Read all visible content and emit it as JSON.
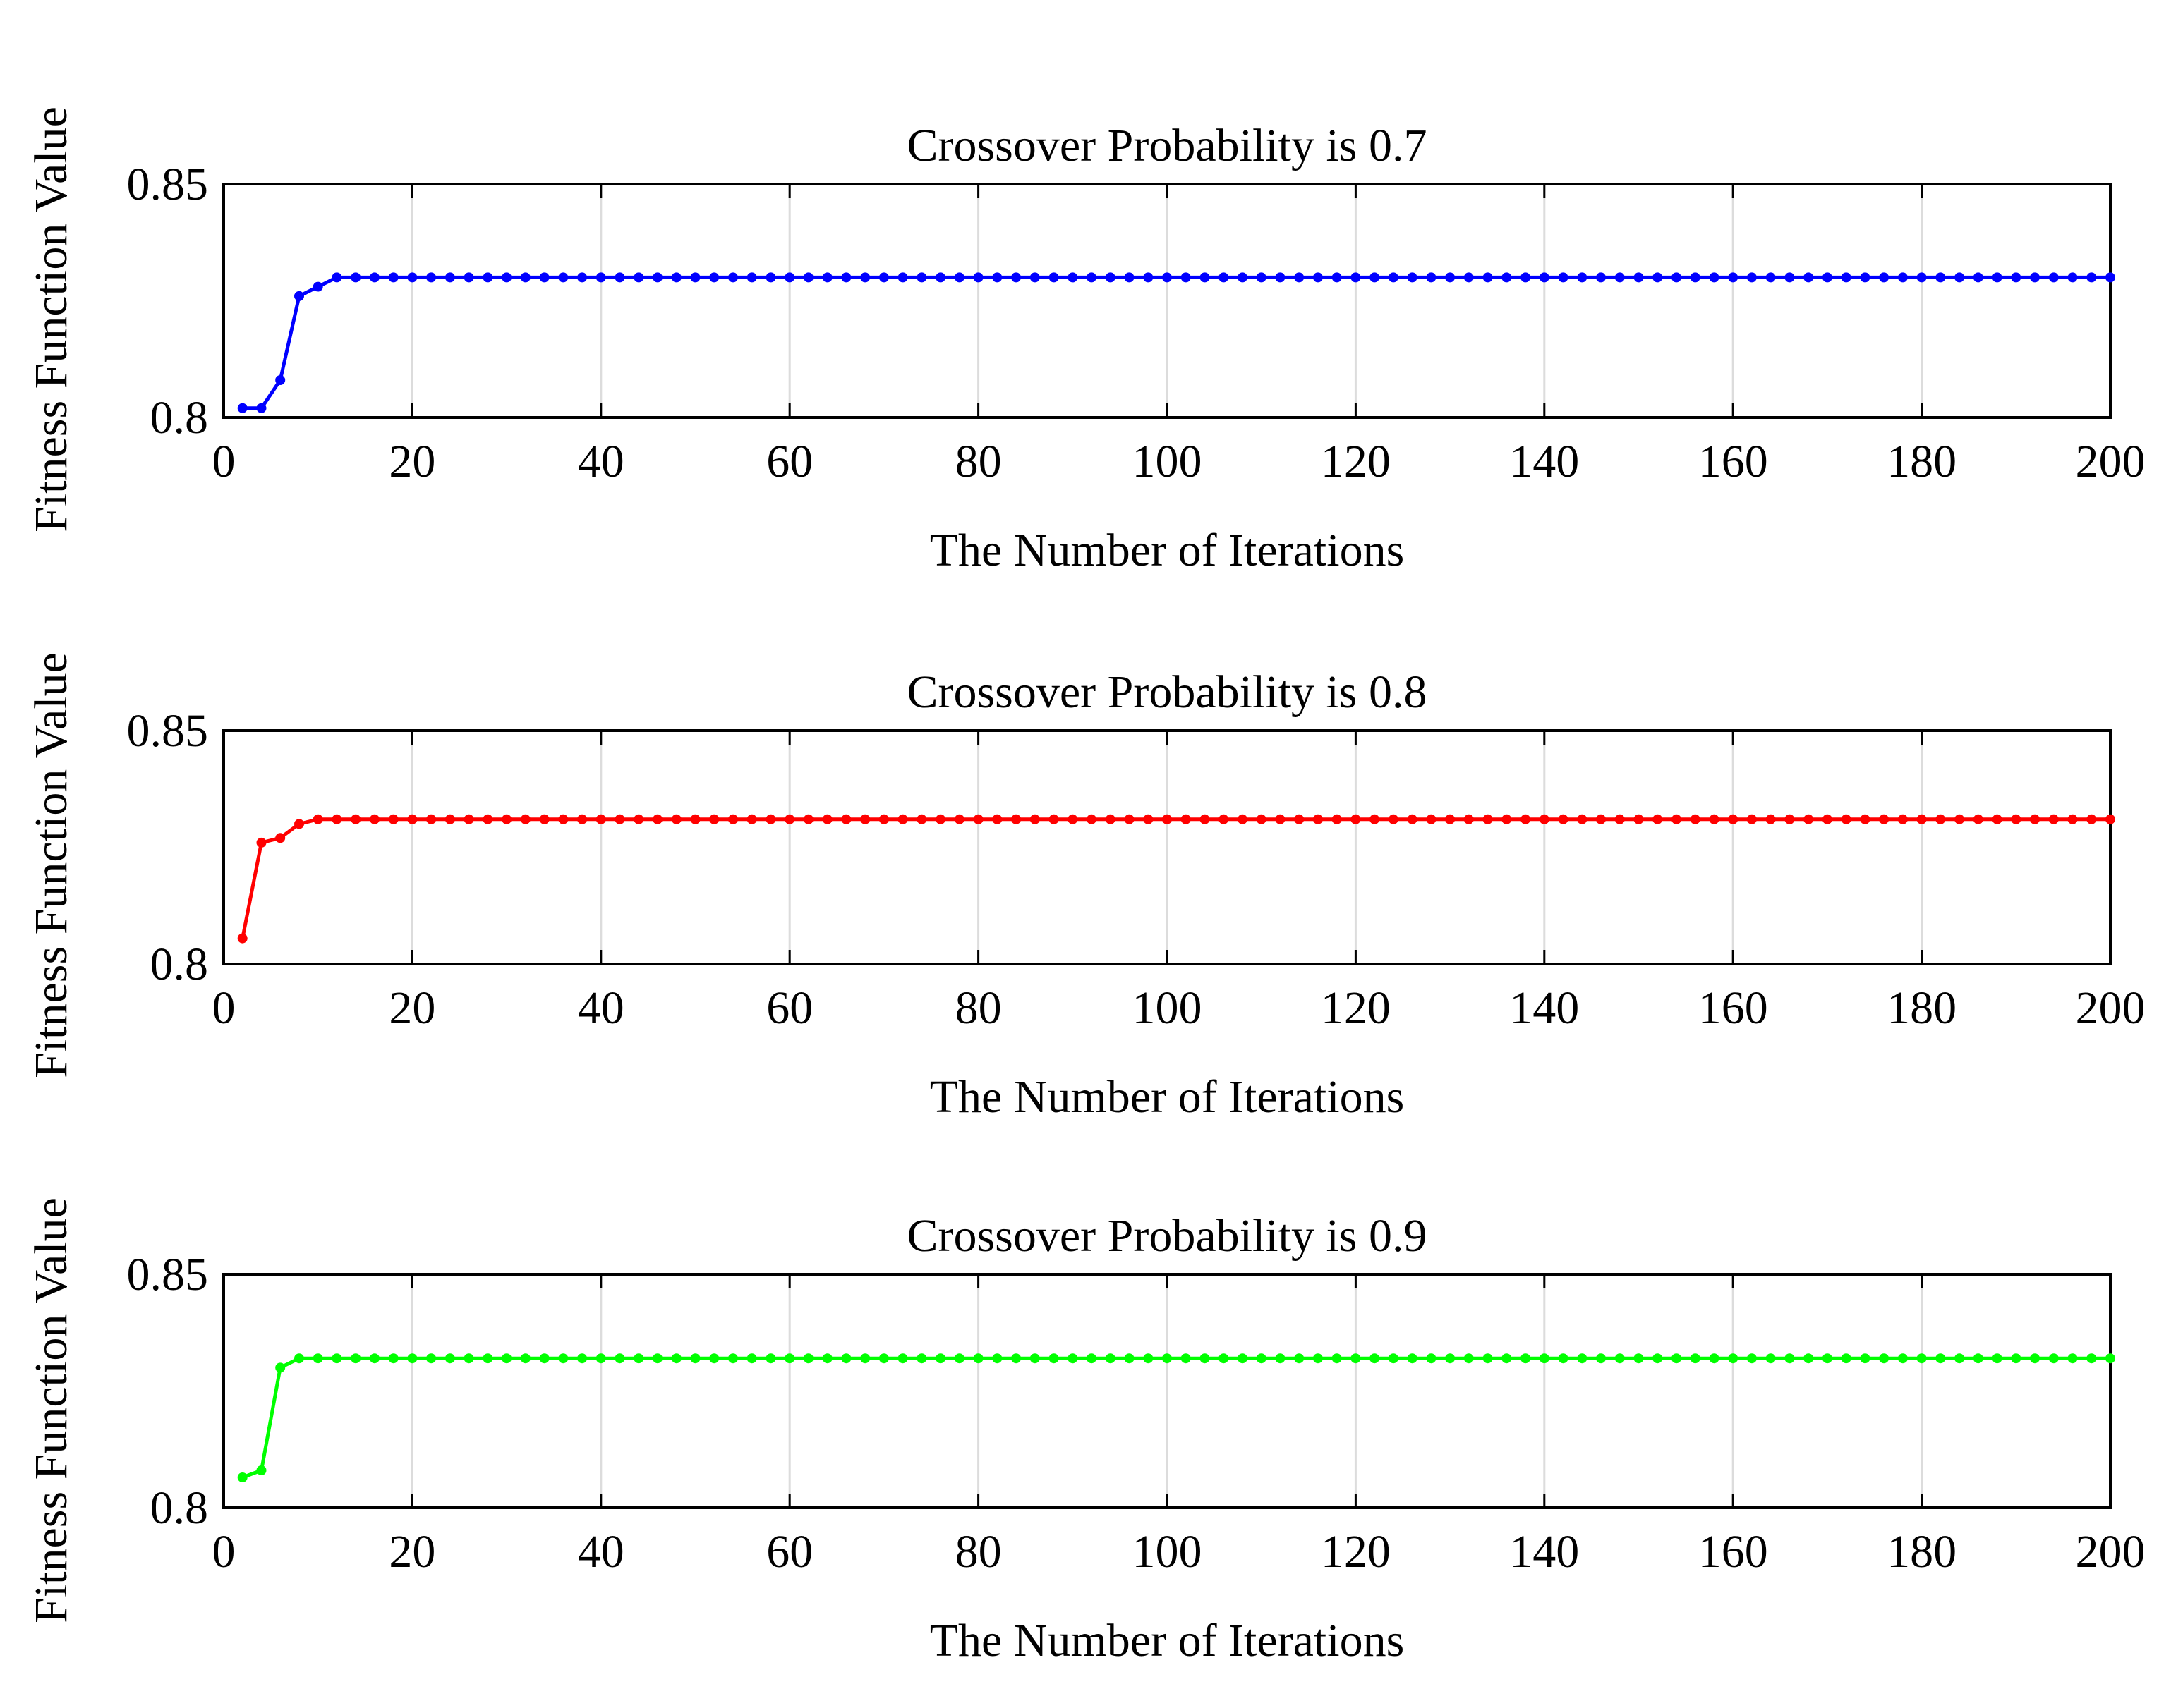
{
  "chart_data": [
    {
      "type": "line",
      "title": "Crossover Probability is 0.7",
      "xlabel": "The Number of Iterations",
      "ylabel": "Fitness Function Value",
      "xlim": [
        0,
        200
      ],
      "ylim": [
        0.8,
        0.85
      ],
      "xticks": [
        "0",
        "20",
        "40",
        "60",
        "80",
        "100",
        "120",
        "140",
        "160",
        "180",
        "200"
      ],
      "yticks": [
        "0.8",
        "0.85"
      ],
      "grid": "vertical",
      "color": "#0000ff",
      "series": [
        {
          "name": "Crossover Probability is 0.7",
          "points": [
            [
              2,
              0.802
            ],
            [
              4,
              0.802
            ],
            [
              6,
              0.808
            ],
            [
              8,
              0.826
            ],
            [
              10,
              0.828
            ],
            [
              12,
              0.83
            ]
          ],
          "plateau": {
            "from": 12,
            "to": 200,
            "step": 2,
            "value": 0.83
          }
        }
      ]
    },
    {
      "type": "line",
      "title": "Crossover Probability is 0.8",
      "xlabel": "The Number of Iterations",
      "ylabel": "Fitness Function Value",
      "xlim": [
        0,
        200
      ],
      "ylim": [
        0.8,
        0.85
      ],
      "xticks": [
        "0",
        "20",
        "40",
        "60",
        "80",
        "100",
        "120",
        "140",
        "160",
        "180",
        "200"
      ],
      "yticks": [
        "0.8",
        "0.85"
      ],
      "grid": "vertical",
      "color": "#ff0000",
      "series": [
        {
          "name": "Crossover Probability is 0.8",
          "points": [
            [
              2,
              0.8055
            ],
            [
              4,
              0.826
            ],
            [
              6,
              0.827
            ],
            [
              8,
              0.83
            ],
            [
              10,
              0.831
            ]
          ],
          "plateau": {
            "from": 10,
            "to": 200,
            "step": 2,
            "value": 0.831
          }
        }
      ]
    },
    {
      "type": "line",
      "title": "Crossover Probability is 0.9",
      "xlabel": "The Number of Iterations",
      "ylabel": "Fitness Function Value",
      "xlim": [
        0,
        200
      ],
      "ylim": [
        0.8,
        0.85
      ],
      "xticks": [
        "0",
        "20",
        "40",
        "60",
        "80",
        "100",
        "120",
        "140",
        "160",
        "180",
        "200"
      ],
      "yticks": [
        "0.8",
        "0.85"
      ],
      "grid": "vertical",
      "color": "#00ff00",
      "series": [
        {
          "name": "Crossover Probability is 0.9",
          "points": [
            [
              2,
              0.8065
            ],
            [
              4,
              0.808
            ],
            [
              6,
              0.83
            ],
            [
              8,
              0.832
            ]
          ],
          "plateau": {
            "from": 8,
            "to": 200,
            "step": 2,
            "value": 0.832
          }
        }
      ]
    }
  ]
}
